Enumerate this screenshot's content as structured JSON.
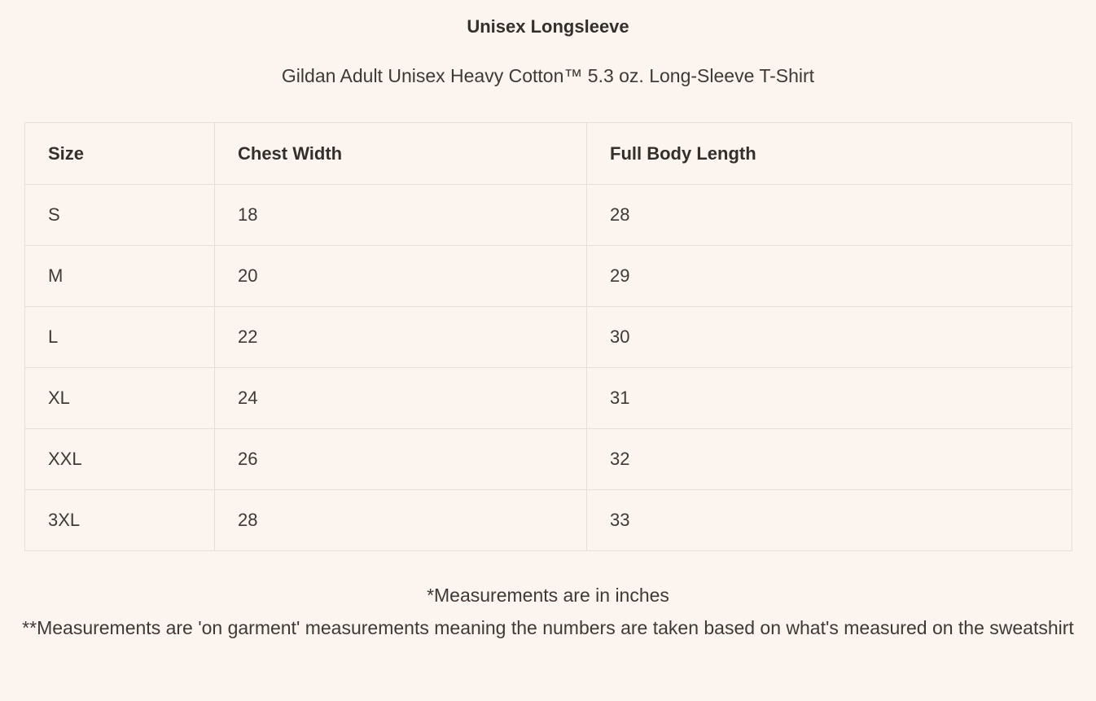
{
  "page": {
    "title": "Unisex Longsleeve",
    "subtitle": "Gildan Adult Unisex Heavy Cotton™ 5.3 oz. Long-Sleeve T-Shirt"
  },
  "size_chart": {
    "columns": [
      "Size",
      "Chest Width",
      "Full Body Length"
    ],
    "rows": [
      {
        "size": "S",
        "chest_width": "18",
        "full_body_length": "28"
      },
      {
        "size": "M",
        "chest_width": "20",
        "full_body_length": "29"
      },
      {
        "size": "L",
        "chest_width": "22",
        "full_body_length": "30"
      },
      {
        "size": "XL",
        "chest_width": "24",
        "full_body_length": "31"
      },
      {
        "size": "XXL",
        "chest_width": "26",
        "full_body_length": "32"
      },
      {
        "size": "3XL",
        "chest_width": "28",
        "full_body_length": "33"
      }
    ],
    "units": "inches"
  },
  "footnotes": {
    "line1": "*Measurements are in inches",
    "line2": "**Measurements are 'on garment' measurements meaning the numbers are taken based on what's measured on the sweatshirt"
  },
  "colors": {
    "background": "#fcf5ef",
    "table_border": "#e5dfd8",
    "text": "#3d3a36",
    "heading_text": "#33302c"
  }
}
